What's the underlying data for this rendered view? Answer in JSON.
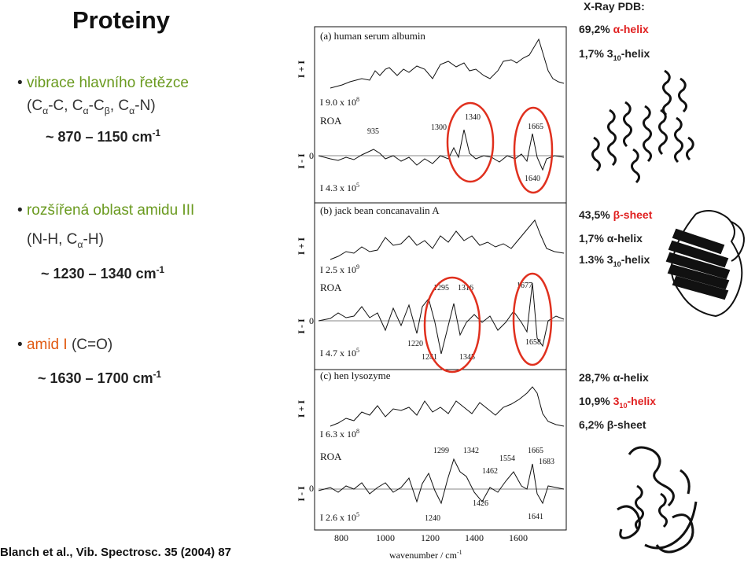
{
  "title": "Proteiny",
  "left": {
    "b1": {
      "line1": "vibrace hlavního řetězce",
      "line2_html": "(C<sub>α</sub>-C, C<sub>α</sub>-C<sub>β</sub>, C<sub>α</sub>-N)",
      "range_html": "~ 870 – 1150 cm<sup>-1</sup>"
    },
    "b2": {
      "line1": "rozšířená oblast amidu III",
      "line2_html": "(N-H, C<sub>α</sub>-H)",
      "range_html": "~ 1230 – 1340 cm<sup>-1</sup>"
    },
    "b3": {
      "label_amid": "amid I",
      "label_rest": " (C=O)",
      "range_html": "~ 1630 – 1700 cm<sup>-1</sup>"
    }
  },
  "right": {
    "xray": "X-Ray PDB:",
    "a1": "69,2% ",
    "a1b": "α-helix",
    "a2_html": "1,7% 3<sub>10</sub>-helix",
    "b1": "43,5% ",
    "b1b": "β-sheet",
    "b2": "1,7% α-helix",
    "b3_html": "1.3% 3<sub>10</sub>-helix",
    "c1": "28,7% α-helix",
    "c2a": "10,9% ",
    "c2b_html": "3<sub>10</sub>-helix",
    "c3": "6,2% β-sheet"
  },
  "citation": "Blanch et al., Vib. Spectrosc. 35 (2004) 87",
  "figure": {
    "panel_a_title": "(a)  human serum albumin",
    "panel_b_title": "(b)  jack bean concanavalin A",
    "panel_c_title": "(c)  hen lysozyme",
    "roa": "ROA",
    "scale_a_raman": "9.0 x 10",
    "scale_a_raman_exp": "8",
    "scale_a_roa": "4.3 x 10",
    "scale_a_roa_exp": "5",
    "scale_b_raman": "2.5 x 10",
    "scale_b_raman_exp": "9",
    "scale_b_roa": "4.7 x 10",
    "scale_b_roa_exp": "5",
    "scale_c_raman": "6.3 x 10",
    "scale_c_raman_exp": "8",
    "scale_c_roa": "2.6 x 10",
    "scale_c_roa_exp": "5",
    "peaks_a": [
      "935",
      "1300",
      "1340",
      "1665",
      "1640"
    ],
    "peaks_b": [
      "1295",
      "1316",
      "1677",
      "1220",
      "1241",
      "1345",
      "1658"
    ],
    "peaks_c": [
      "1299",
      "1342",
      "1554",
      "1665",
      "1683",
      "1462",
      "1426",
      "1240",
      "1641"
    ],
    "x_ticks": [
      "800",
      "1000",
      "1200",
      "1400",
      "1600"
    ],
    "x_label": "wavenumber / cm",
    "y_raman": "I  + I",
    "y_roa": "I  - I",
    "zero": "0"
  }
}
